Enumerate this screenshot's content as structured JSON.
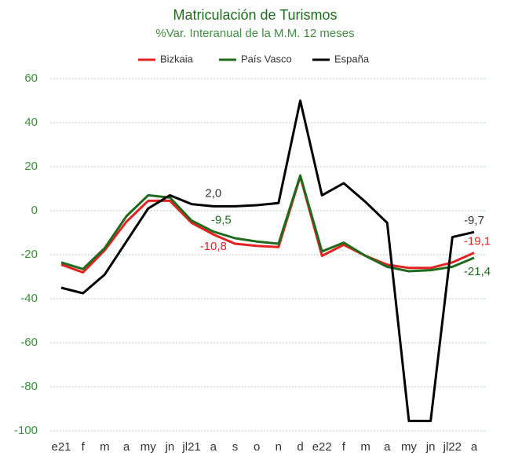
{
  "chart_data": {
    "type": "line",
    "title": "Matriculación de Turismos",
    "subtitle": "%Var. Interanual de la M.M. 12 meses",
    "categories": [
      "e21",
      "f",
      "m",
      "a",
      "my",
      "jn",
      "jl21",
      "a",
      "s",
      "o",
      "n",
      "d",
      "e22",
      "f",
      "m",
      "a",
      "my",
      "jn",
      "jl22",
      "a"
    ],
    "series": [
      {
        "name": "Bizkaia",
        "color": "#e32222",
        "values": [
          -24.5,
          -28,
          -18,
          -5,
          4.5,
          4.5,
          -5.5,
          -10.8,
          -15,
          -16,
          -16.5,
          15.5,
          -20.5,
          -15.5,
          -20.5,
          -24.5,
          -26,
          -26,
          -23.5,
          -19.1
        ],
        "value_labels": [
          null,
          null,
          null,
          null,
          null,
          null,
          null,
          "-10,8",
          null,
          null,
          null,
          null,
          null,
          null,
          null,
          null,
          null,
          null,
          null,
          "-19,1"
        ]
      },
      {
        "name": "País Vasco",
        "color": "#1e6b1e",
        "values": [
          -23.5,
          -26.5,
          -17,
          -2.5,
          7,
          6,
          -4.5,
          -9.5,
          -12.5,
          -14,
          -15,
          16,
          -18.5,
          -14.5,
          -20.5,
          -25.5,
          -27.5,
          -27,
          -25.5,
          -21.4
        ],
        "value_labels": [
          null,
          null,
          null,
          null,
          null,
          null,
          null,
          "-9,5",
          null,
          null,
          null,
          null,
          null,
          null,
          null,
          null,
          null,
          null,
          null,
          "-21,4"
        ]
      },
      {
        "name": "España",
        "color": "#000000",
        "values": [
          -35,
          -37.5,
          -29,
          -14,
          1,
          7,
          3,
          2.0,
          2,
          2.5,
          3.5,
          50,
          7,
          12.5,
          4,
          -5.5,
          -95.5,
          -95.5,
          -12,
          -9.7
        ],
        "value_labels": [
          null,
          null,
          null,
          null,
          null,
          null,
          null,
          "2,0",
          null,
          null,
          null,
          null,
          null,
          null,
          null,
          null,
          null,
          null,
          null,
          "-9,7"
        ]
      }
    ],
    "ylim": [
      -100,
      60
    ],
    "yticks": [
      -100,
      -80,
      -60,
      -40,
      -20,
      0,
      20,
      40,
      60
    ],
    "grid": true,
    "legend": "top"
  }
}
